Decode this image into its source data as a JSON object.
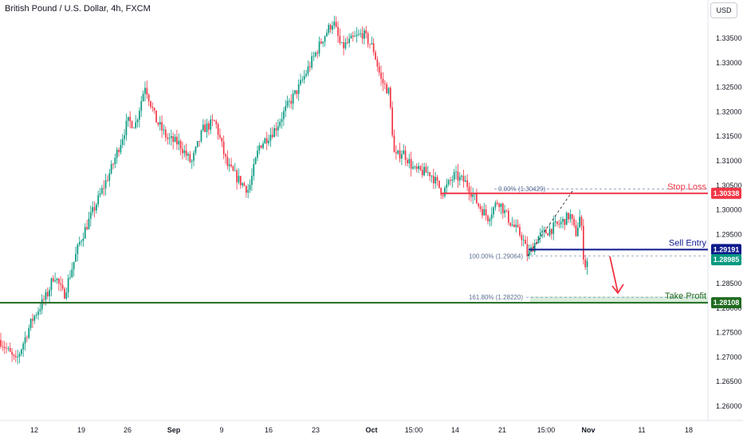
{
  "header": {
    "symbol_title": "British Pound / U.S. Dollar, 4h, FXCM",
    "currency_button": "USD"
  },
  "chart_data": {
    "type": "candlestick",
    "title": "British Pound / U.S. Dollar, 4h, FXCM",
    "y_axis": {
      "ticks": [
        "1.33500",
        "1.33000",
        "1.32500",
        "1.32000",
        "1.31500",
        "1.31000",
        "1.30500",
        "1.30000",
        "1.29500",
        "1.29000",
        "1.28500",
        "1.28000",
        "1.27500",
        "1.27000",
        "1.26500",
        "1.26000"
      ],
      "range": [
        1.2585,
        1.3376
      ]
    },
    "x_axis": {
      "ticks": [
        "12",
        "19",
        "26",
        "Sep",
        "9",
        "16",
        "23",
        "Oct",
        "15:00",
        "14",
        "21",
        "15:00",
        "Nov",
        "11",
        "18"
      ]
    },
    "price_path": [
      [
        0,
        1.2735
      ],
      [
        20,
        1.269
      ],
      [
        40,
        1.2775
      ],
      [
        60,
        1.283
      ],
      [
        68,
        1.287
      ],
      [
        80,
        1.2825
      ],
      [
        100,
        1.2935
      ],
      [
        120,
        1.301
      ],
      [
        140,
        1.3085
      ],
      [
        160,
        1.318
      ],
      [
        170,
        1.3175
      ],
      [
        182,
        1.3255
      ],
      [
        195,
        1.3185
      ],
      [
        210,
        1.3145
      ],
      [
        225,
        1.3135
      ],
      [
        240,
        1.3095
      ],
      [
        255,
        1.3165
      ],
      [
        270,
        1.318
      ],
      [
        285,
        1.309
      ],
      [
        300,
        1.306
      ],
      [
        312,
        1.304
      ],
      [
        325,
        1.313
      ],
      [
        345,
        1.3165
      ],
      [
        360,
        1.321
      ],
      [
        375,
        1.325
      ],
      [
        390,
        1.33
      ],
      [
        405,
        1.335
      ],
      [
        418,
        1.3385
      ],
      [
        428,
        1.333
      ],
      [
        440,
        1.3345
      ],
      [
        455,
        1.336
      ],
      [
        468,
        1.333
      ],
      [
        478,
        1.3265
      ],
      [
        488,
        1.324
      ],
      [
        495,
        1.3105
      ],
      [
        505,
        1.312
      ],
      [
        520,
        1.308
      ],
      [
        540,
        1.3075
      ],
      [
        555,
        1.3035
      ],
      [
        570,
        1.307
      ],
      [
        585,
        1.3055
      ],
      [
        600,
        1.301
      ],
      [
        612,
        1.2985
      ],
      [
        625,
        1.302
      ],
      [
        640,
        1.2975
      ],
      [
        655,
        1.2945
      ],
      [
        662,
        1.2906
      ],
      [
        675,
        1.2945
      ],
      [
        690,
        1.296
      ],
      [
        705,
        1.2975
      ],
      [
        715,
        1.299
      ],
      [
        722,
        1.295
      ],
      [
        728,
        1.299
      ],
      [
        733,
        1.2885
      ],
      [
        738,
        1.29
      ]
    ],
    "annotations": {
      "stop_loss": {
        "label": "Stop Loss",
        "price": 1.30338,
        "price_label": "1.30338",
        "color": "#f23645"
      },
      "sell_entry": {
        "label": "Sell Entry",
        "price": 1.29191,
        "price_label": "1.29191",
        "color": "#0d1a8c"
      },
      "current_price": {
        "price": 1.28985,
        "price_label": "1.28985",
        "color": "#089981"
      },
      "take_profit": {
        "label": "Take Profit",
        "price": 1.28108,
        "price_label": "1.28108",
        "color": "#1f6b1f"
      },
      "fib_0": {
        "label": "0.00% (1.30429)",
        "price": 1.30429
      },
      "fib_100": {
        "label": "100.00% (1.29064)",
        "price": 1.29064
      },
      "fib_161": {
        "label": "161.80% (1.28220)",
        "price": 1.2822
      }
    },
    "colors": {
      "up": "#089981",
      "down": "#f23645",
      "fib_line": "#7b93b8",
      "tp_zone": "#cfe8d2"
    },
    "grid": false
  }
}
